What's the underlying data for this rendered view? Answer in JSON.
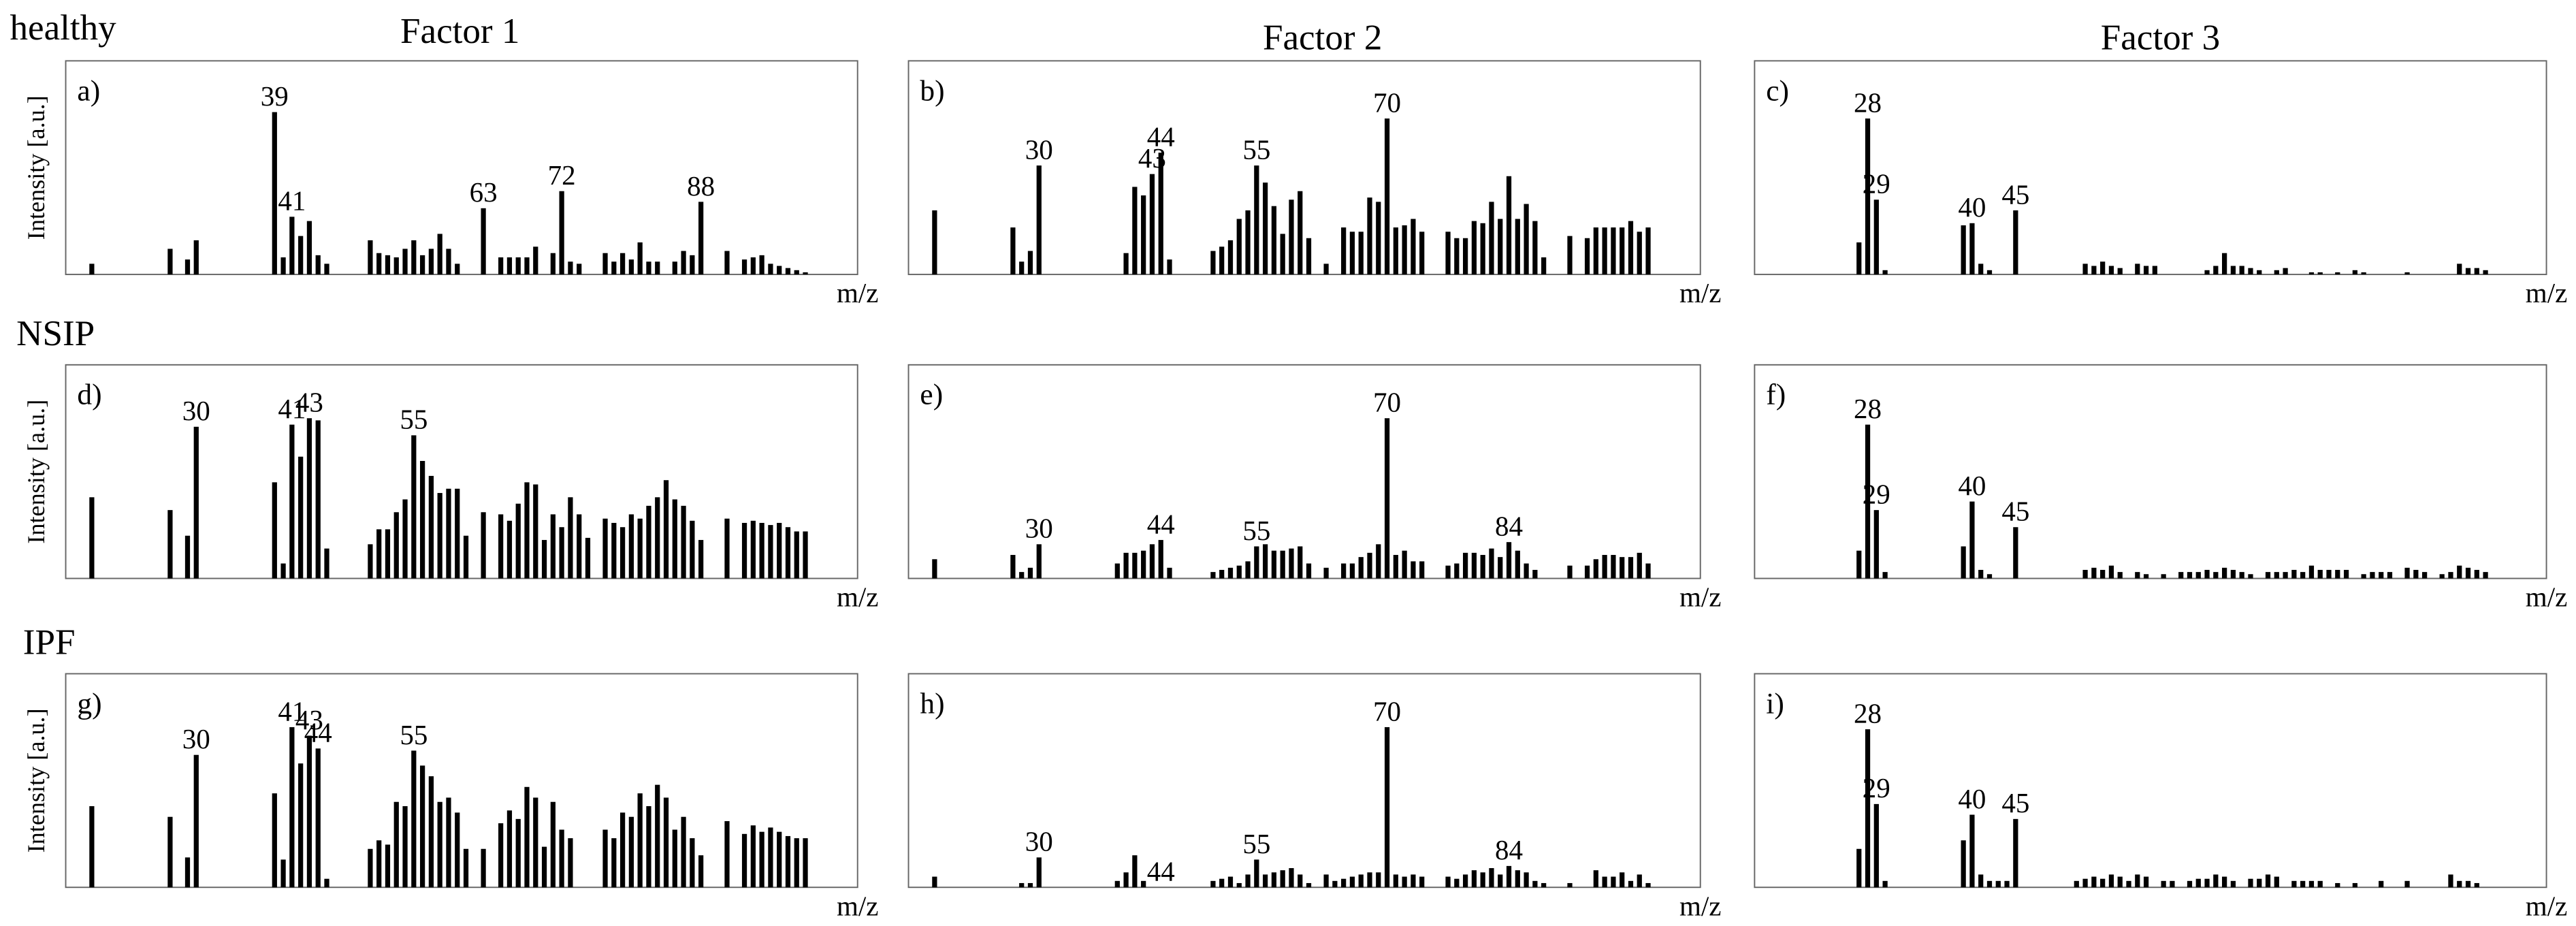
{
  "column_titles": [
    "Factor 1",
    "Factor 2",
    "Factor 3"
  ],
  "row_labels": [
    "healthy",
    "NSIP",
    "IPF"
  ],
  "chart_data": [
    {
      "type": "bar",
      "title": "a)",
      "x_label": "m/z",
      "y_label": "Intensity [a.u.]",
      "xlim": [
        15,
        106
      ],
      "ylim": [
        0,
        100
      ],
      "color": "#000000",
      "x": [
        18,
        27,
        29,
        30,
        39,
        40,
        41,
        42,
        43,
        44,
        45,
        50,
        51,
        52,
        53,
        54,
        55,
        56,
        57,
        58,
        59,
        60,
        63,
        65,
        66,
        67,
        68,
        69,
        71,
        72,
        73,
        74,
        77,
        78,
        79,
        80,
        81,
        82,
        83,
        85,
        86,
        87,
        88,
        91,
        93,
        94,
        95,
        96,
        97,
        98,
        99,
        100
      ],
      "values": [
        5,
        12,
        7,
        16,
        76,
        8,
        27,
        18,
        25,
        9,
        5,
        16,
        10,
        9,
        8,
        12,
        16,
        9,
        12,
        19,
        12,
        5,
        31,
        8,
        8,
        8,
        8,
        13,
        10,
        39,
        6,
        5,
        10,
        6,
        10,
        7,
        15,
        6,
        6,
        6,
        11,
        9,
        34,
        11,
        7,
        8,
        9,
        5,
        4,
        3,
        2,
        1
      ],
      "labeled_peaks": [
        39,
        41,
        63,
        72,
        88
      ]
    },
    {
      "type": "bar",
      "title": "b)",
      "x_label": "m/z",
      "xlim": [
        15,
        106
      ],
      "ylim": [
        0,
        100
      ],
      "color": "#000000",
      "x": [
        18,
        27,
        28,
        29,
        30,
        40,
        41,
        42,
        43,
        44,
        45,
        50,
        51,
        52,
        53,
        54,
        55,
        56,
        57,
        58,
        59,
        60,
        61,
        63,
        65,
        66,
        67,
        68,
        69,
        70,
        71,
        72,
        73,
        74,
        77,
        78,
        79,
        80,
        81,
        82,
        83,
        84,
        85,
        86,
        87,
        88,
        91,
        93,
        94,
        95,
        96,
        97,
        98,
        99,
        100
      ],
      "values": [
        30,
        22,
        6,
        11,
        51,
        10,
        41,
        37,
        47,
        57,
        7,
        11,
        13,
        16,
        26,
        30,
        51,
        43,
        32,
        19,
        35,
        39,
        17,
        5,
        22,
        20,
        20,
        36,
        34,
        73,
        22,
        23,
        26,
        20,
        20,
        17,
        17,
        25,
        24,
        34,
        26,
        46,
        26,
        33,
        25,
        8,
        18,
        17,
        22,
        22,
        22,
        22,
        25,
        20,
        22
      ],
      "labeled_peaks": [
        30,
        43,
        44,
        55,
        70
      ]
    },
    {
      "type": "bar",
      "title": "c)",
      "x_label": "m/z",
      "xlim": [
        15,
        106
      ],
      "ylim": [
        0,
        100
      ],
      "color": "#000000",
      "x": [
        27,
        28,
        29,
        30,
        39,
        40,
        41,
        42,
        45,
        53,
        54,
        55,
        56,
        57,
        59,
        60,
        61,
        67,
        68,
        69,
        70,
        71,
        72,
        73,
        75,
        76,
        79,
        80,
        82,
        84,
        85,
        90,
        96,
        97,
        98,
        99
      ],
      "values": [
        15,
        73,
        35,
        2,
        23,
        24,
        5,
        2,
        30,
        5,
        4,
        6,
        4,
        3,
        5,
        4,
        4,
        2,
        4,
        10,
        4,
        4,
        3,
        2,
        2,
        3,
        1,
        1,
        1,
        2,
        1,
        1,
        5,
        3,
        3,
        2
      ],
      "labeled_peaks": [
        28,
        29,
        40,
        45
      ]
    },
    {
      "type": "bar",
      "title": "d)",
      "x_label": "m/z",
      "y_label": "Intensity [a.u.]",
      "xlim": [
        15,
        106
      ],
      "ylim": [
        0,
        100
      ],
      "color": "#000000",
      "x": [
        18,
        27,
        29,
        30,
        39,
        40,
        41,
        42,
        43,
        44,
        45,
        50,
        51,
        52,
        53,
        54,
        55,
        56,
        57,
        58,
        59,
        60,
        61,
        63,
        65,
        66,
        67,
        68,
        69,
        70,
        71,
        72,
        73,
        74,
        75,
        77,
        78,
        79,
        80,
        81,
        82,
        83,
        84,
        85,
        86,
        87,
        88,
        91,
        93,
        94,
        95,
        96,
        97,
        98,
        99,
        100
      ],
      "values": [
        38,
        32,
        20,
        71,
        45,
        7,
        72,
        57,
        75,
        74,
        14,
        16,
        23,
        23,
        31,
        37,
        67,
        55,
        48,
        40,
        42,
        42,
        20,
        31,
        30,
        27,
        35,
        45,
        44,
        18,
        30,
        24,
        38,
        30,
        19,
        28,
        26,
        24,
        30,
        28,
        34,
        38,
        46,
        37,
        34,
        27,
        18,
        28,
        26,
        27,
        26,
        25,
        26,
        24,
        22,
        22
      ],
      "labeled_peaks": [
        30,
        41,
        43,
        55
      ]
    },
    {
      "type": "bar",
      "title": "e)",
      "x_label": "m/z",
      "xlim": [
        15,
        106
      ],
      "ylim": [
        0,
        100
      ],
      "color": "#000000",
      "x": [
        18,
        27,
        28,
        29,
        30,
        39,
        40,
        41,
        42,
        43,
        44,
        45,
        50,
        51,
        52,
        53,
        54,
        55,
        56,
        57,
        58,
        59,
        60,
        61,
        63,
        65,
        66,
        67,
        68,
        69,
        70,
        71,
        72,
        73,
        74,
        77,
        78,
        79,
        80,
        81,
        82,
        83,
        84,
        85,
        86,
        87,
        91,
        93,
        94,
        95,
        96,
        97,
        98,
        99,
        100
      ],
      "values": [
        9,
        11,
        3,
        5,
        16,
        7,
        12,
        12,
        13,
        16,
        18,
        5,
        3,
        4,
        5,
        6,
        8,
        15,
        16,
        13,
        13,
        14,
        15,
        7,
        5,
        7,
        7,
        10,
        12,
        16,
        75,
        11,
        13,
        8,
        8,
        6,
        7,
        12,
        12,
        11,
        14,
        10,
        17,
        13,
        7,
        4,
        6,
        6,
        9,
        11,
        11,
        10,
        10,
        12,
        7
      ],
      "labeled_peaks": [
        30,
        44,
        55,
        70,
        84
      ]
    },
    {
      "type": "bar",
      "title": "f)",
      "x_label": "m/z",
      "xlim": [
        15,
        106
      ],
      "ylim": [
        0,
        100
      ],
      "color": "#000000",
      "x": [
        27,
        28,
        29,
        30,
        39,
        40,
        41,
        42,
        45,
        53,
        54,
        55,
        56,
        57,
        59,
        60,
        62,
        64,
        65,
        66,
        67,
        68,
        69,
        70,
        71,
        72,
        74,
        75,
        76,
        77,
        78,
        79,
        80,
        81,
        82,
        83,
        85,
        86,
        87,
        88,
        90,
        91,
        92,
        94,
        95,
        96,
        97,
        98,
        99
      ],
      "values": [
        13,
        72,
        32,
        3,
        15,
        36,
        4,
        2,
        24,
        4,
        5,
        4,
        6,
        3,
        3,
        2,
        2,
        3,
        3,
        3,
        4,
        3,
        5,
        4,
        3,
        2,
        3,
        3,
        3,
        4,
        3,
        6,
        4,
        4,
        4,
        4,
        2,
        3,
        3,
        3,
        5,
        4,
        3,
        2,
        3,
        6,
        5,
        4,
        3
      ],
      "labeled_peaks": [
        28,
        29,
        40,
        45
      ]
    },
    {
      "type": "bar",
      "title": "g)",
      "x_label": "m/z",
      "y_label": "Intensity [a.u.]",
      "xlim": [
        15,
        106
      ],
      "ylim": [
        0,
        100
      ],
      "color": "#000000",
      "x": [
        18,
        27,
        29,
        30,
        39,
        40,
        41,
        42,
        43,
        44,
        45,
        50,
        51,
        52,
        53,
        54,
        55,
        56,
        57,
        58,
        59,
        60,
        61,
        63,
        65,
        66,
        67,
        68,
        69,
        70,
        71,
        72,
        73,
        77,
        78,
        79,
        80,
        81,
        82,
        83,
        84,
        85,
        86,
        87,
        88,
        91,
        93,
        94,
        95,
        96,
        97,
        98,
        99,
        100
      ],
      "values": [
        38,
        33,
        14,
        62,
        44,
        13,
        75,
        58,
        71,
        65,
        4,
        18,
        22,
        20,
        40,
        38,
        64,
        57,
        52,
        40,
        42,
        35,
        18,
        18,
        30,
        36,
        32,
        47,
        42,
        19,
        40,
        27,
        23,
        27,
        23,
        35,
        33,
        44,
        38,
        48,
        42,
        27,
        33,
        23,
        15,
        31,
        25,
        29,
        26,
        28,
        26,
        24,
        23,
        23
      ],
      "labeled_peaks": [
        30,
        41,
        43,
        44,
        55
      ]
    },
    {
      "type": "bar",
      "title": "h)",
      "x_label": "m/z",
      "xlim": [
        15,
        106
      ],
      "ylim": [
        0,
        100
      ],
      "color": "#000000",
      "x": [
        18,
        28,
        29,
        30,
        39,
        40,
        41,
        42,
        50,
        51,
        52,
        53,
        54,
        55,
        56,
        57,
        58,
        59,
        60,
        61,
        63,
        64,
        65,
        66,
        67,
        68,
        69,
        70,
        71,
        72,
        73,
        74,
        77,
        78,
        79,
        80,
        81,
        82,
        83,
        84,
        85,
        86,
        87,
        88,
        91,
        94,
        95,
        96,
        97,
        98,
        99,
        100
      ],
      "values": [
        5,
        2,
        2,
        14,
        3,
        7,
        15,
        3,
        3,
        4,
        5,
        2,
        6,
        13,
        6,
        7,
        8,
        9,
        6,
        2,
        6,
        3,
        4,
        5,
        6,
        7,
        7,
        75,
        6,
        5,
        6,
        5,
        5,
        4,
        6,
        8,
        7,
        9,
        6,
        10,
        8,
        7,
        3,
        2,
        2,
        8,
        5,
        5,
        7,
        3,
        6,
        2
      ],
      "labeled_peaks": [
        30,
        44,
        55,
        70,
        84
      ]
    },
    {
      "type": "bar",
      "title": "i)",
      "x_label": "m/z",
      "xlim": [
        15,
        106
      ],
      "ylim": [
        0,
        100
      ],
      "color": "#000000",
      "x": [
        27,
        28,
        29,
        30,
        39,
        40,
        41,
        42,
        43,
        44,
        45,
        52,
        53,
        54,
        55,
        56,
        57,
        58,
        59,
        60,
        62,
        63,
        65,
        66,
        67,
        68,
        69,
        70,
        72,
        73,
        74,
        75,
        77,
        78,
        79,
        80,
        82,
        84,
        87,
        90,
        95,
        96,
        97,
        98
      ],
      "values": [
        18,
        74,
        39,
        3,
        22,
        34,
        6,
        3,
        3,
        3,
        32,
        3,
        4,
        5,
        4,
        6,
        5,
        3,
        6,
        5,
        3,
        3,
        3,
        4,
        4,
        6,
        5,
        3,
        4,
        4,
        6,
        5,
        3,
        3,
        3,
        3,
        2,
        2,
        3,
        3,
        6,
        3,
        3,
        2
      ],
      "labeled_peaks": [
        28,
        29,
        40,
        45
      ]
    }
  ]
}
